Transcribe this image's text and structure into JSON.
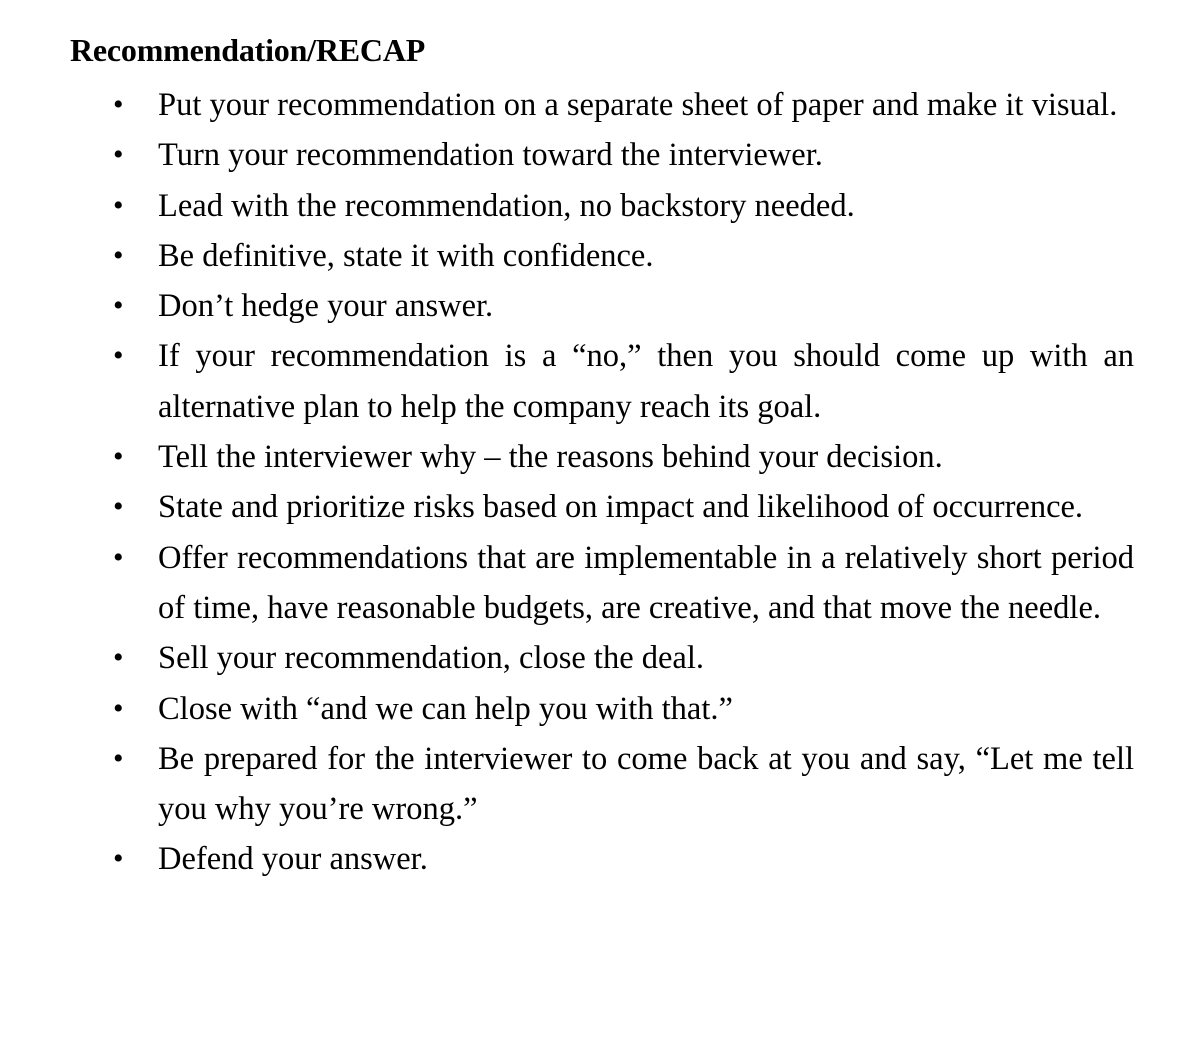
{
  "document": {
    "heading": "Recommendation/RECAP",
    "bullet_glyph": "•",
    "items": [
      "Put your recommendation on a separate sheet of paper and make it visual.",
      "Turn your recommendation toward the interviewer.",
      "Lead with the recommendation, no backstory needed.",
      "Be definitive, state it with confidence.",
      "Don’t hedge your answer.",
      "If your recommendation is a “no,” then you should come up with an alternative plan to help the company reach its goal.",
      "Tell the interviewer why – the reasons behind your decision.",
      "State and prioritize risks based on impact and likelihood of occurrence.",
      "Offer recommendations that are implementable in a relatively short period of time, have reasonable budgets, are creative, and that move the needle.",
      "Sell your recommendation, close the deal.",
      "Close with “and we can help you with that.”",
      "Be prepared for the interviewer to come back at you and say, “Let me tell you why you’re wrong.”",
      "Defend your answer."
    ]
  }
}
